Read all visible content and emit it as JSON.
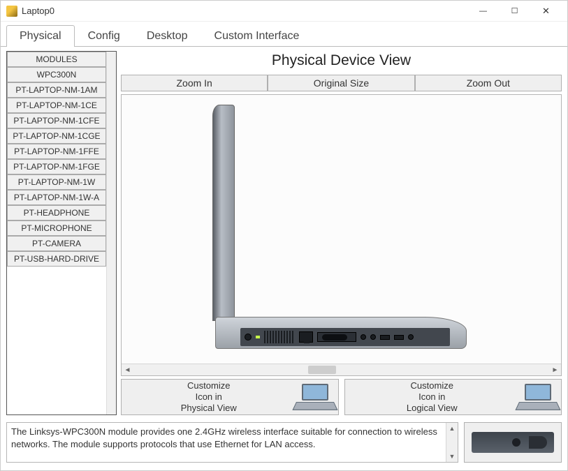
{
  "window": {
    "title": "Laptop0"
  },
  "tabs": {
    "items": [
      {
        "label": "Physical",
        "active": true
      },
      {
        "label": "Config",
        "active": false
      },
      {
        "label": "Desktop",
        "active": false
      },
      {
        "label": "Custom Interface",
        "active": false
      }
    ]
  },
  "modules": {
    "header": "MODULES",
    "items": [
      "WPC300N",
      "PT-LAPTOP-NM-1AM",
      "PT-LAPTOP-NM-1CE",
      "PT-LAPTOP-NM-1CFE",
      "PT-LAPTOP-NM-1CGE",
      "PT-LAPTOP-NM-1FFE",
      "PT-LAPTOP-NM-1FGE",
      "PT-LAPTOP-NM-1W",
      "PT-LAPTOP-NM-1W-A",
      "PT-HEADPHONE",
      "PT-MICROPHONE",
      "PT-CAMERA",
      "PT-USB-HARD-DRIVE"
    ]
  },
  "physical": {
    "heading": "Physical Device View",
    "zoom": {
      "in": "Zoom In",
      "original": "Original Size",
      "out": "Zoom Out"
    },
    "customize": {
      "physical": "Customize\nIcon in\nPhysical View",
      "logical": "Customize\nIcon in\nLogical View"
    }
  },
  "description": "The Linksys-WPC300N module provides one 2.4GHz wireless interface suitable for connection to wireless networks. The module supports protocols that use Ethernet for LAN access.",
  "colors": {
    "button_bg": "#efefef",
    "button_border": "#b0b0b0",
    "panel_border": "#b5b5b5",
    "laptop_body": "#9ba1a8",
    "laptop_lid": "#8e949c",
    "port_strip": "#42474e",
    "led": "#c7ff4a",
    "mini_screen": "#8fb7da"
  }
}
